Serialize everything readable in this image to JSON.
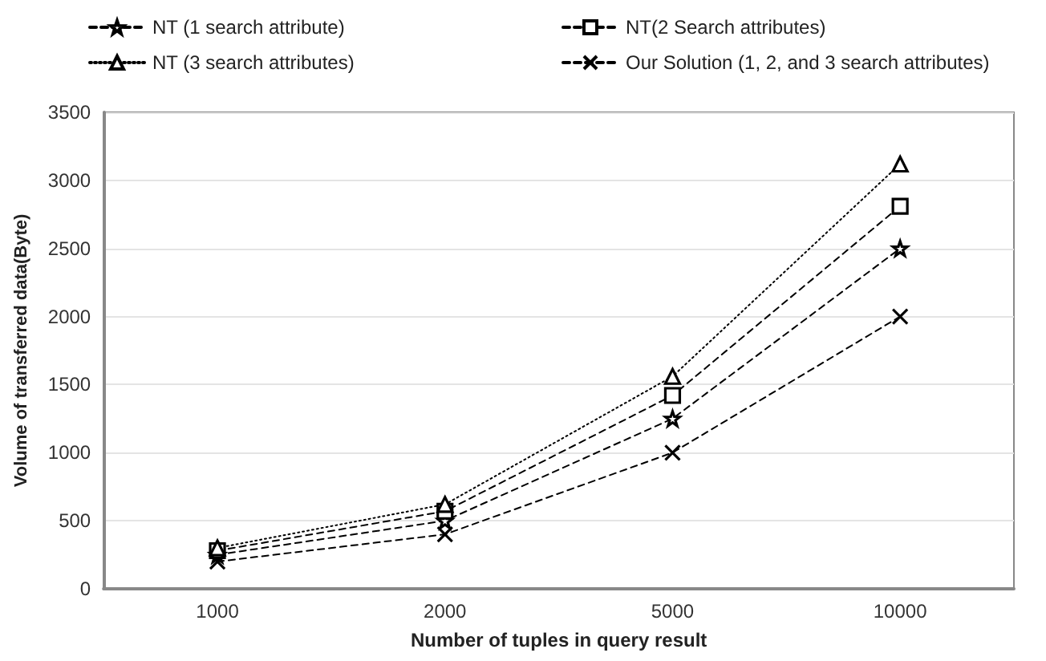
{
  "chart_data": {
    "type": "line",
    "xlabel": "Number of tuples in query result",
    "ylabel": "Volume of transferred data(Byte)",
    "categories": [
      "1000",
      "2000",
      "5000",
      "10000"
    ],
    "series": [
      {
        "name": "NT (1 search attribute)",
        "color": "#000000",
        "marker": "star",
        "line_style": "dashed",
        "values": [
          250,
          500,
          1250,
          2500
        ]
      },
      {
        "name": "NT(2 Search attributes)",
        "color": "#000000",
        "marker": "square",
        "line_style": "dashed",
        "values": [
          280,
          570,
          1420,
          2810
        ]
      },
      {
        "name": "NT (3 search attributes)",
        "color": "#000000",
        "marker": "triangle",
        "line_style": "dotted",
        "values": [
          300,
          620,
          1560,
          3120
        ]
      },
      {
        "name": "Our Solution (1, 2, and 3 search attributes)",
        "color": "#000000",
        "marker": "cross",
        "line_style": "dashed",
        "values": [
          200,
          400,
          1000,
          2000
        ]
      }
    ],
    "ylim": [
      0,
      3500
    ],
    "yticks": [
      0,
      500,
      1000,
      1500,
      2000,
      2500,
      3000,
      3500
    ],
    "grid": "y",
    "legend": "top"
  }
}
